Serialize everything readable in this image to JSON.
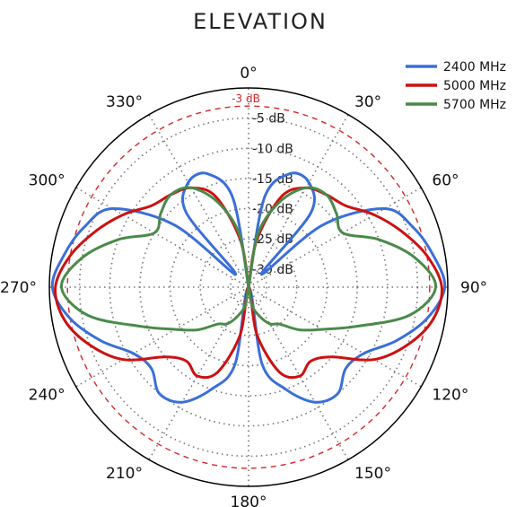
{
  "chart_data": {
    "type": "polar-line",
    "title": "ELEVATION",
    "angle_unit": "°",
    "angle_ticks": [
      0,
      30,
      60,
      90,
      120,
      150,
      180,
      210,
      240,
      270,
      300,
      330
    ],
    "radial_range_db": [
      -33,
      0
    ],
    "radial_rings_db": [
      -5,
      -10,
      -15,
      -20,
      -25,
      -30
    ],
    "radial_ring_labels": [
      "-5 dB",
      "-10 dB",
      "-15 dB",
      "-20 dB",
      "-25 dB",
      "-30 dB"
    ],
    "reference_ring": {
      "value": -3,
      "label": "-3 dB",
      "color": "#d62728"
    },
    "grid": true,
    "legend_position": "top-right",
    "series": [
      {
        "name": "2400 MHz",
        "color": "#3a6fd8",
        "angles": [
          0,
          10,
          20,
          30,
          40,
          45,
          50,
          60,
          70,
          80,
          90,
          100,
          110,
          120,
          130,
          140,
          150,
          160,
          170,
          180,
          190,
          200,
          210,
          220,
          230,
          240,
          250,
          260,
          270,
          280,
          290,
          300,
          310,
          315,
          320,
          330,
          340,
          350,
          360
        ],
        "gain_db": [
          -33,
          -18,
          -13,
          -13,
          -17,
          -30,
          -17,
          -7,
          -4,
          -2,
          -0.5,
          -3,
          -7,
          -11,
          -12,
          -10,
          -11,
          -15,
          -20,
          -33,
          -20,
          -15,
          -11,
          -10,
          -12,
          -11,
          -7,
          -3,
          -0.5,
          -2,
          -4,
          -7,
          -17,
          -30,
          -17,
          -13,
          -13,
          -18,
          -33
        ]
      },
      {
        "name": "5000 MHz",
        "color": "#cc1111",
        "angles": [
          0,
          10,
          20,
          30,
          40,
          50,
          60,
          70,
          80,
          90,
          100,
          110,
          120,
          130,
          140,
          150,
          160,
          170,
          180,
          190,
          200,
          210,
          220,
          230,
          240,
          250,
          260,
          270,
          280,
          290,
          300,
          310,
          320,
          330,
          340,
          350,
          360
        ],
        "gain_db": [
          -33,
          -25,
          -17,
          -14,
          -13,
          -12,
          -9,
          -6,
          -3,
          -1,
          -2,
          -5,
          -9,
          -15,
          -17,
          -16,
          -18,
          -25,
          -33,
          -25,
          -18,
          -16,
          -17,
          -15,
          -9,
          -5,
          -2,
          -1,
          -3,
          -6,
          -9,
          -12,
          -13,
          -14,
          -17,
          -25,
          -33
        ]
      },
      {
        "name": "5700 MHz",
        "color": "#4a8a4a",
        "angles": [
          0,
          10,
          20,
          30,
          40,
          50,
          60,
          70,
          80,
          90,
          100,
          110,
          120,
          130,
          140,
          150,
          160,
          170,
          180,
          190,
          200,
          210,
          220,
          230,
          240,
          250,
          260,
          270,
          280,
          290,
          300,
          310,
          320,
          330,
          340,
          350,
          360
        ],
        "gain_db": [
          -33,
          -24,
          -18,
          -14,
          -13,
          -14,
          -15,
          -10,
          -5,
          -2,
          -6,
          -14,
          -19,
          -22,
          -25,
          -26,
          -28,
          -30,
          -33,
          -30,
          -28,
          -26,
          -25,
          -22,
          -19,
          -14,
          -6,
          -2,
          -5,
          -10,
          -15,
          -14,
          -13,
          -14,
          -18,
          -24,
          -33
        ]
      }
    ]
  }
}
